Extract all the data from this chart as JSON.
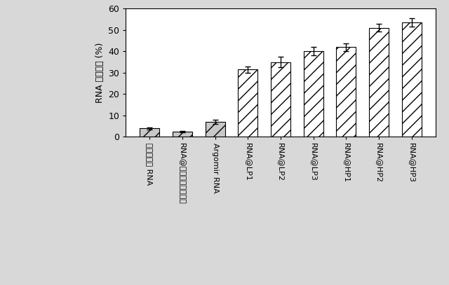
{
  "categories": [
    "ネイキッド RNA",
    "RNA@リボフェクタミン",
    "Argomir RNA",
    "RNA@LP1",
    "RNA@LP2",
    "RNA@LP3",
    "RNA@HP1",
    "RNA@HP2",
    "RNA@HP3"
  ],
  "values": [
    4.0,
    2.5,
    7.0,
    31.5,
    35.0,
    40.0,
    42.0,
    51.0,
    53.5
  ],
  "errors": [
    0.5,
    0.4,
    1.0,
    1.5,
    2.5,
    2.0,
    1.8,
    1.8,
    2.0
  ],
  "ylabel": "RNA 捕捉効率 (%)",
  "ylim": [
    0,
    60
  ],
  "yticks": [
    0,
    10,
    20,
    30,
    40,
    50,
    60
  ],
  "hatch_patterns": [
    "//",
    "//",
    "//",
    "//",
    "//",
    "//",
    "//",
    "//",
    "//"
  ],
  "bar_facecolor": [
    "#c8c8c8",
    "#c8c8c8",
    "#c8c8c8",
    "#ffffff",
    "#ffffff",
    "#ffffff",
    "#ffffff",
    "#ffffff",
    "#ffffff"
  ],
  "bar_edgecolor": "#000000",
  "background_color": "#d8d8d8",
  "plot_background": "#ffffff",
  "figsize": [
    6.4,
    4.07
  ],
  "dpi": 100,
  "label_fontsize": 8,
  "ylabel_fontsize": 9,
  "ytick_fontsize": 9
}
